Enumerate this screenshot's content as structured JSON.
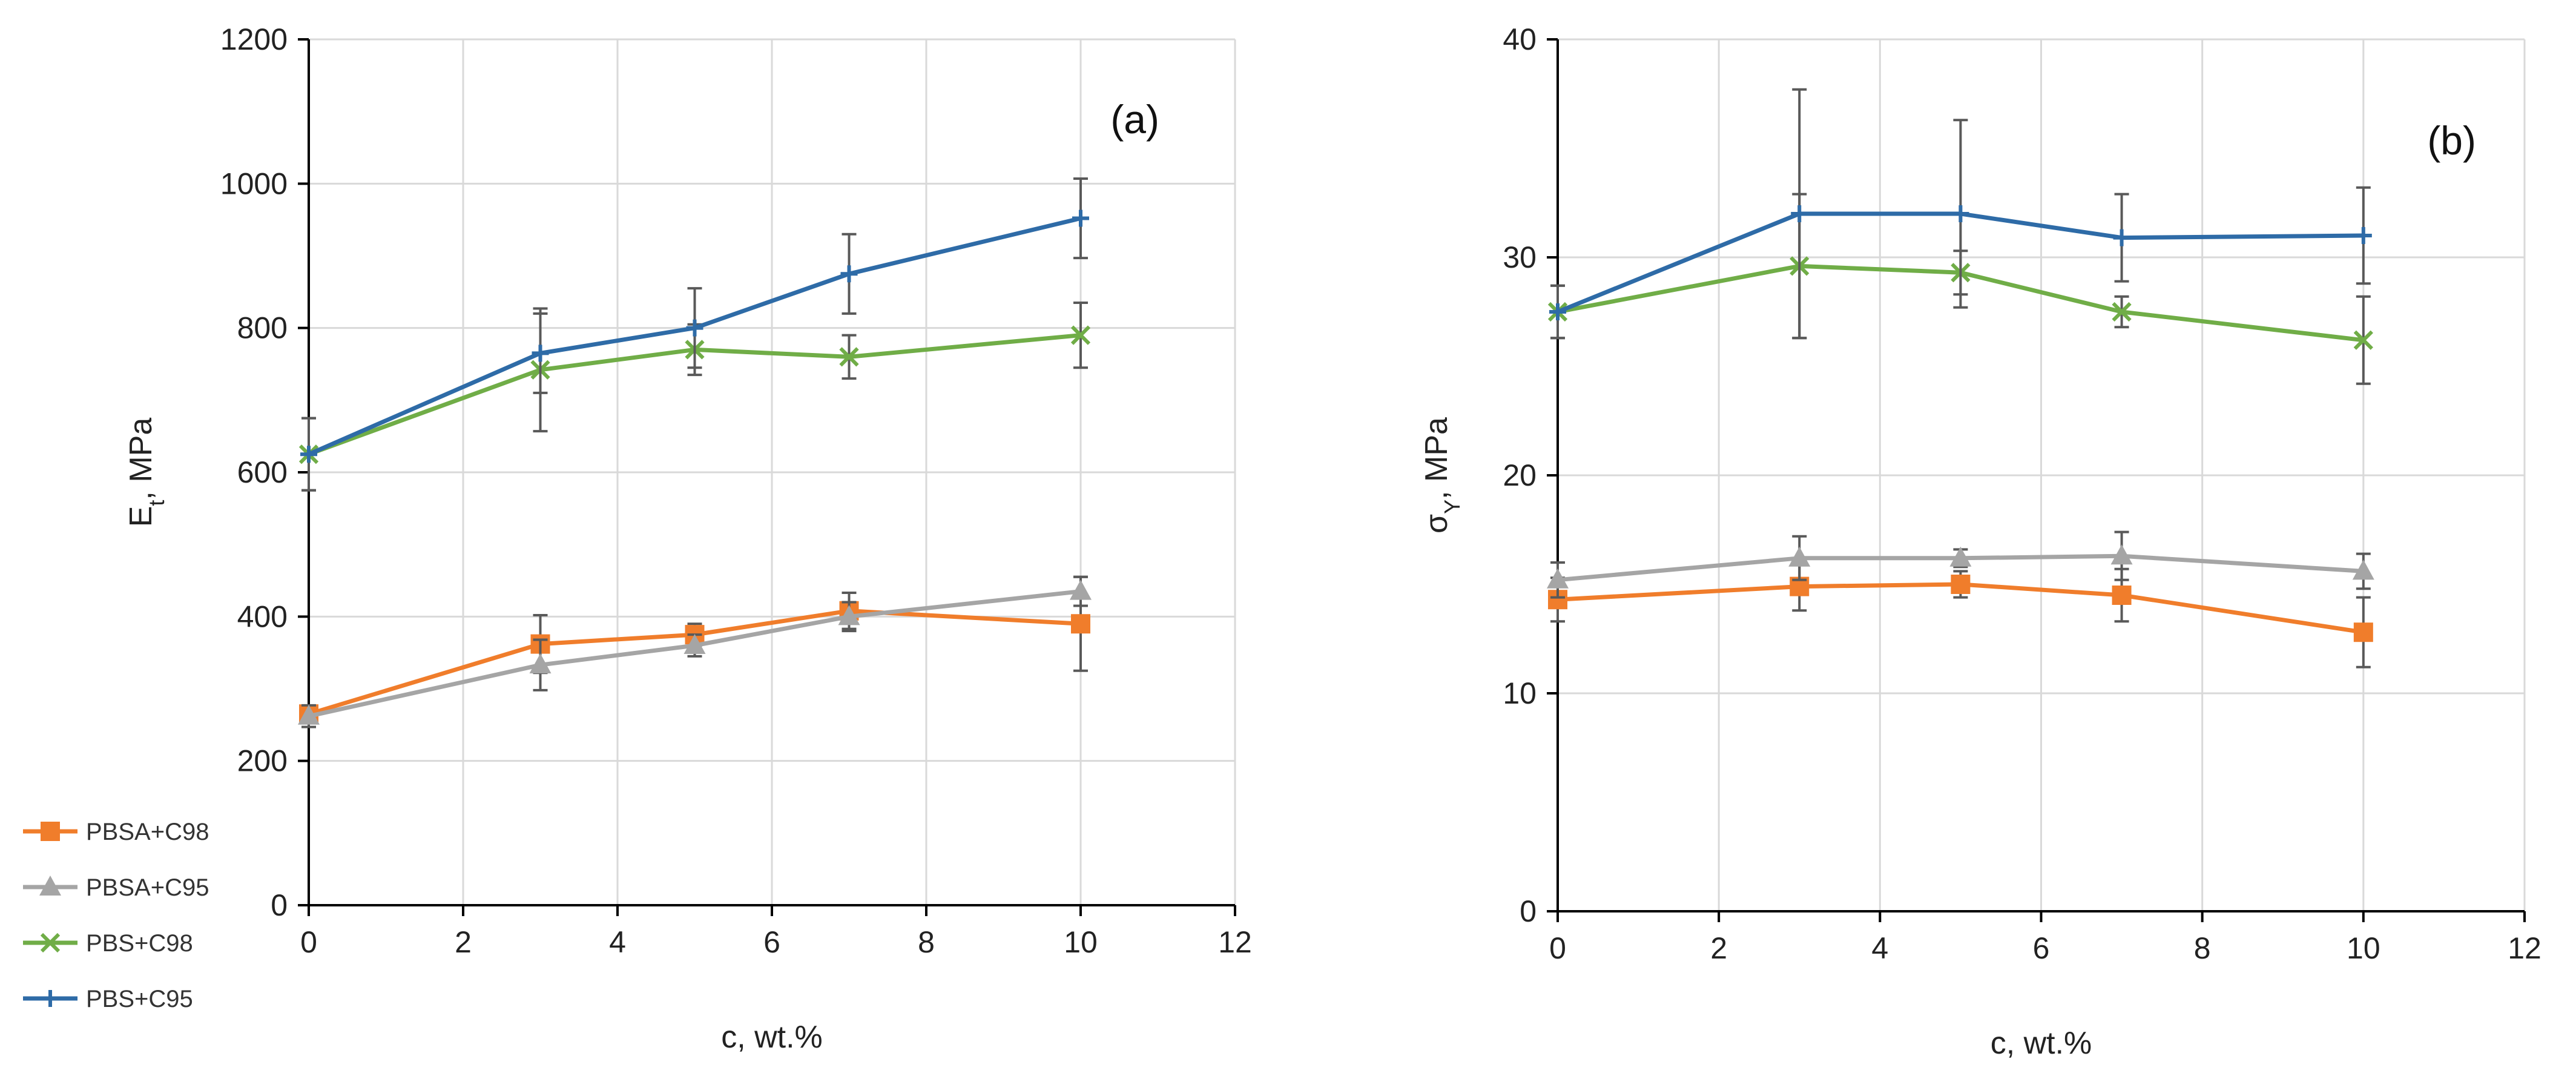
{
  "chart_data": [
    {
      "type": "line",
      "panel_label": "(a)",
      "xlabel": "c, wt.%",
      "ylabel": "E",
      "ylabel_sub": "t",
      "ylabel_unit": ", MPa",
      "xlim": [
        0,
        12
      ],
      "ylim": [
        0,
        1200
      ],
      "xticks": [
        0,
        2,
        4,
        6,
        8,
        10,
        12
      ],
      "yticks": [
        0,
        200,
        400,
        600,
        800,
        1000,
        1200
      ],
      "grid": true,
      "x": [
        0,
        3,
        5,
        7,
        10
      ],
      "series": [
        {
          "name": "PBSA+C98",
          "color": "#F07D2B",
          "marker": "square",
          "values": [
            265,
            362,
            375,
            408,
            390
          ],
          "errors": [
            10,
            40,
            15,
            25,
            65
          ]
        },
        {
          "name": "PBSA+C95",
          "color": "#A5A5A5",
          "marker": "triangle",
          "values": [
            262,
            333,
            360,
            400,
            435
          ],
          "errors": [
            15,
            35,
            15,
            20,
            20
          ]
        },
        {
          "name": "PBS+C98",
          "color": "#70AD47",
          "marker": "x",
          "values": [
            625,
            742,
            770,
            760,
            790
          ],
          "errors": [
            50,
            85,
            35,
            30,
            45
          ]
        },
        {
          "name": "PBS+C95",
          "color": "#2E6BA7",
          "marker": "plus",
          "values": [
            625,
            765,
            800,
            875,
            952
          ],
          "errors": [
            50,
            55,
            55,
            55,
            55
          ]
        }
      ]
    },
    {
      "type": "line",
      "panel_label": "(b)",
      "xlabel": "c, wt.%",
      "ylabel": "σ",
      "ylabel_sub": "Y",
      "ylabel_unit": ", MPa",
      "xlim": [
        0,
        12
      ],
      "ylim": [
        0,
        40
      ],
      "xticks": [
        0,
        2,
        4,
        6,
        8,
        10,
        12
      ],
      "yticks": [
        0,
        10,
        20,
        30,
        40
      ],
      "grid": true,
      "x": [
        0,
        3,
        5,
        7,
        10
      ],
      "series": [
        {
          "name": "PBSA+C98",
          "color": "#F07D2B",
          "marker": "square",
          "values": [
            14.3,
            14.9,
            15.0,
            14.5,
            12.8
          ],
          "errors": [
            1.0,
            1.1,
            0.6,
            1.2,
            1.6
          ]
        },
        {
          "name": "PBSA+C95",
          "color": "#A5A5A5",
          "marker": "triangle",
          "values": [
            15.2,
            16.2,
            16.2,
            16.3,
            15.6
          ],
          "errors": [
            0.8,
            1.0,
            0.4,
            1.1,
            0.8
          ]
        },
        {
          "name": "PBS+C98",
          "color": "#70AD47",
          "marker": "x",
          "values": [
            27.5,
            29.6,
            29.3,
            27.5,
            26.2
          ],
          "errors": [
            1.2,
            3.3,
            1.0,
            0.7,
            2.0
          ]
        },
        {
          "name": "PBS+C95",
          "color": "#2E6BA7",
          "marker": "plus",
          "values": [
            27.5,
            32.0,
            32.0,
            30.9,
            31.0
          ],
          "errors": [
            1.2,
            5.7,
            4.3,
            2.0,
            2.2
          ]
        }
      ]
    }
  ],
  "legend": {
    "placement": "bottom-left",
    "items": [
      "PBSA+C98",
      "PBSA+C95",
      "PBS+C98",
      "PBS+C95"
    ]
  }
}
